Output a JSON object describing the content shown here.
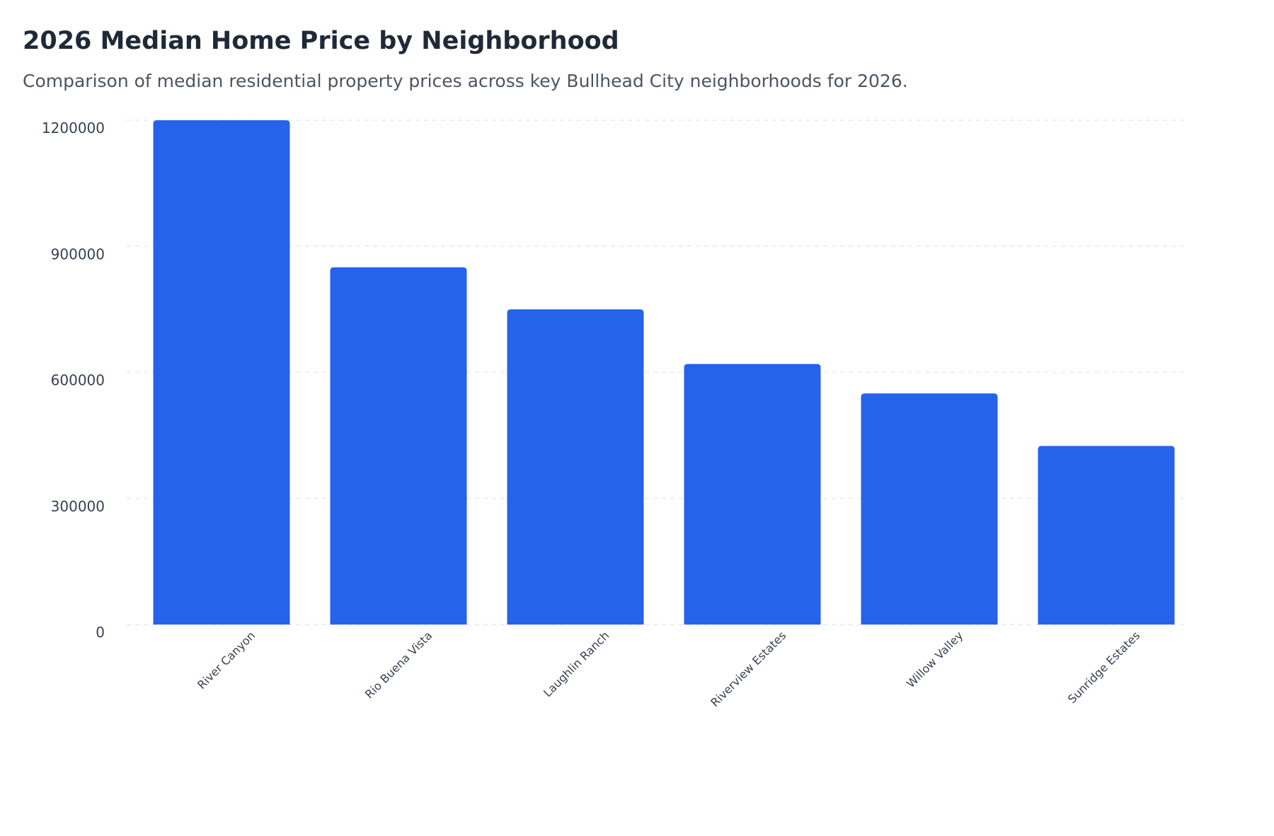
{
  "chart_data": {
    "type": "bar",
    "title": "2026 Median Home Price by Neighborhood",
    "subtitle": "Comparison of median residential property prices across key Bullhead City neighborhoods for 2026.",
    "categories": [
      "River Canyon",
      "Rio Buena Vista",
      "Laughlin Ranch",
      "Riverview Estates",
      "Willow Valley",
      "Sunridge Estates"
    ],
    "values": [
      1200000,
      850000,
      750000,
      620000,
      550000,
      425000
    ],
    "xlabel": "",
    "ylabel": "",
    "ylim": [
      0,
      1200000
    ],
    "yticks": [
      "0",
      "300000",
      "600000",
      "900000",
      "1200000"
    ],
    "grid": true,
    "legend": "none",
    "bar_color": "#2563eb"
  }
}
